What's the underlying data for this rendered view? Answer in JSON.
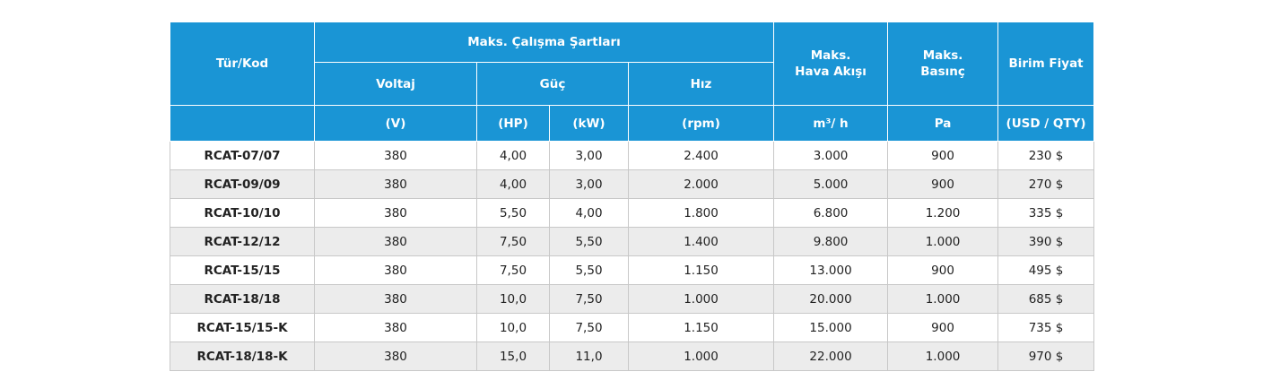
{
  "table": {
    "headers": {
      "type_code": "Tür/Kod",
      "max_conditions": "Maks. Çalışma Şartları",
      "voltage": "Voltaj",
      "power": "Güç",
      "speed": "Hız",
      "max_airflow_line1": "Maks.",
      "max_airflow_line2": "Hava Akışı",
      "max_pressure_line1": "Maks.",
      "max_pressure_line2": "Basınç",
      "unit_price": "Birim Fiyat"
    },
    "units": {
      "voltage": "(V)",
      "power_hp": "(HP)",
      "power_kw": "(kW)",
      "speed": "(rpm)",
      "airflow": "m³/ h",
      "pressure": "Pa",
      "price": "(USD / QTY)"
    },
    "rows": [
      {
        "code": "RCAT-07/07",
        "voltage": "380",
        "hp": "4,00",
        "kw": "3,00",
        "rpm": "2.400",
        "airflow": "3.000",
        "pressure": "900",
        "price": "230 $"
      },
      {
        "code": "RCAT-09/09",
        "voltage": "380",
        "hp": "4,00",
        "kw": "3,00",
        "rpm": "2.000",
        "airflow": "5.000",
        "pressure": "900",
        "price": "270 $"
      },
      {
        "code": "RCAT-10/10",
        "voltage": "380",
        "hp": "5,50",
        "kw": "4,00",
        "rpm": "1.800",
        "airflow": "6.800",
        "pressure": "1.200",
        "price": "335 $"
      },
      {
        "code": "RCAT-12/12",
        "voltage": "380",
        "hp": "7,50",
        "kw": "5,50",
        "rpm": "1.400",
        "airflow": "9.800",
        "pressure": "1.000",
        "price": "390 $"
      },
      {
        "code": "RCAT-15/15",
        "voltage": "380",
        "hp": "7,50",
        "kw": "5,50",
        "rpm": "1.150",
        "airflow": "13.000",
        "pressure": "900",
        "price": "495 $"
      },
      {
        "code": "RCAT-18/18",
        "voltage": "380",
        "hp": "10,0",
        "kw": "7,50",
        "rpm": "1.000",
        "airflow": "20.000",
        "pressure": "1.000",
        "price": "685 $"
      },
      {
        "code": "RCAT-15/15-K",
        "voltage": "380",
        "hp": "10,0",
        "kw": "7,50",
        "rpm": "1.150",
        "airflow": "15.000",
        "pressure": "900",
        "price": "735 $"
      },
      {
        "code": "RCAT-18/18-K",
        "voltage": "380",
        "hp": "15,0",
        "kw": "11,0",
        "rpm": "1.000",
        "airflow": "22.000",
        "pressure": "1.000",
        "price": "970 $"
      }
    ]
  },
  "colors": {
    "header_bg": "#1a95d5",
    "header_text": "#ffffff",
    "stripe": "#ececec",
    "grid": "#c8c8c8"
  }
}
